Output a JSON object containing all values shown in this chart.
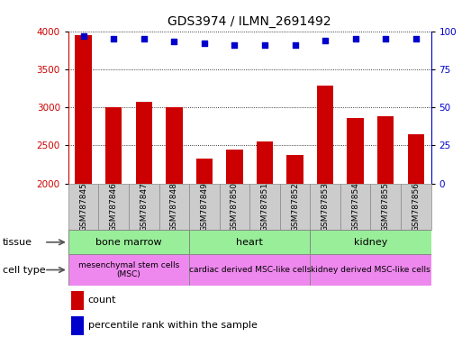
{
  "title": "GDS3974 / ILMN_2691492",
  "samples": [
    "GSM787845",
    "GSM787846",
    "GSM787847",
    "GSM787848",
    "GSM787849",
    "GSM787850",
    "GSM787851",
    "GSM787852",
    "GSM787853",
    "GSM787854",
    "GSM787855",
    "GSM787856"
  ],
  "counts": [
    3950,
    2995,
    3075,
    3000,
    2320,
    2440,
    2555,
    2375,
    3290,
    2860,
    2885,
    2645
  ],
  "percentile_ranks": [
    97,
    95,
    95,
    93,
    92,
    91,
    91,
    91,
    94,
    95,
    95,
    95
  ],
  "ylim_left": [
    2000,
    4000
  ],
  "ylim_right": [
    0,
    100
  ],
  "yticks_left": [
    2000,
    2500,
    3000,
    3500,
    4000
  ],
  "yticks_right": [
    0,
    25,
    50,
    75,
    100
  ],
  "bar_color": "#cc0000",
  "dot_color": "#0000cc",
  "bar_bottom": 2000,
  "tissues": [
    {
      "label": "bone marrow",
      "start": 0,
      "end": 4
    },
    {
      "label": "heart",
      "start": 4,
      "end": 8
    },
    {
      "label": "kidney",
      "start": 8,
      "end": 12
    }
  ],
  "tissue_color": "#99ee99",
  "cell_types": [
    {
      "label": "mesenchymal stem cells\n(MSC)",
      "start": 0,
      "end": 4
    },
    {
      "label": "cardiac derived MSC-like cells",
      "start": 4,
      "end": 8
    },
    {
      "label": "kidney derived MSC-like cells",
      "start": 8,
      "end": 12
    }
  ],
  "celltype_color": "#ee88ee",
  "tissue_row_label": "tissue",
  "celltype_row_label": "cell type",
  "legend_count_label": "count",
  "legend_pct_label": "percentile rank within the sample",
  "tick_label_color_left": "#cc0000",
  "tick_label_color_right": "#0000cc",
  "background_color": "#ffffff",
  "grid_color": "#000000",
  "sample_bg_color": "#cccccc",
  "border_color": "#888888"
}
